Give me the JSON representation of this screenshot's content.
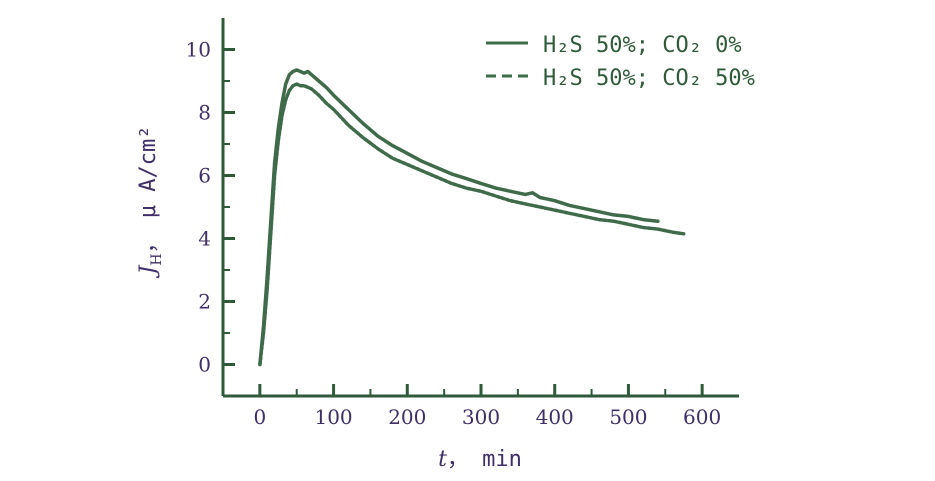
{
  "colors": {
    "axis": "#2f5a3a",
    "label_text": "#3f2f66",
    "series_line": "#3f6b4a",
    "legend_text": "#2f5a3a",
    "background": "#ffffff"
  },
  "chart_data": {
    "type": "line",
    "title": "",
    "xlabel_var": "t",
    "xlabel_unit": "， min",
    "ylabel_var": "J",
    "ylabel_sub": "H",
    "ylabel_unit": "， μ A/cm²",
    "xlim": [
      -50,
      650
    ],
    "ylim": [
      -1,
      11
    ],
    "x_ticks": [
      0,
      100,
      200,
      300,
      400,
      500,
      600
    ],
    "x_tick_labels": [
      "0",
      "100",
      "200",
      "300",
      "400",
      "500",
      "600"
    ],
    "y_ticks": [
      0,
      2,
      4,
      6,
      8,
      10
    ],
    "y_tick_labels": [
      "0",
      "2",
      "4",
      "6",
      "8",
      "10"
    ],
    "grid": false,
    "legend_position": "top-right",
    "series": [
      {
        "name": "H₂S 50%; CO₂ 0%",
        "style": "solid",
        "x": [
          0,
          5,
          10,
          15,
          20,
          25,
          30,
          35,
          40,
          45,
          50,
          55,
          60,
          65,
          70,
          80,
          90,
          100,
          120,
          140,
          160,
          180,
          200,
          220,
          240,
          260,
          280,
          300,
          320,
          340,
          360,
          370,
          380,
          390,
          400,
          420,
          440,
          460,
          480,
          500,
          520,
          540
        ],
        "y": [
          0,
          1.2,
          2.8,
          4.6,
          6.4,
          7.5,
          8.3,
          8.9,
          9.2,
          9.3,
          9.35,
          9.3,
          9.25,
          9.3,
          9.2,
          9.0,
          8.8,
          8.55,
          8.1,
          7.65,
          7.25,
          6.95,
          6.7,
          6.45,
          6.25,
          6.05,
          5.9,
          5.75,
          5.6,
          5.5,
          5.4,
          5.45,
          5.3,
          5.25,
          5.2,
          5.05,
          4.95,
          4.85,
          4.75,
          4.7,
          4.6,
          4.55
        ]
      },
      {
        "name": "H₂S 50%; CO₂ 50%",
        "style": "dashed",
        "x": [
          0,
          5,
          10,
          15,
          20,
          25,
          30,
          35,
          40,
          45,
          50,
          55,
          60,
          70,
          80,
          90,
          100,
          120,
          140,
          160,
          180,
          200,
          220,
          240,
          260,
          280,
          300,
          320,
          340,
          360,
          380,
          400,
          420,
          440,
          460,
          480,
          500,
          520,
          540,
          560,
          575
        ],
        "y": [
          0,
          1.0,
          2.4,
          4.2,
          6.0,
          7.1,
          7.9,
          8.4,
          8.7,
          8.85,
          8.9,
          8.85,
          8.85,
          8.75,
          8.55,
          8.3,
          8.1,
          7.6,
          7.2,
          6.85,
          6.55,
          6.35,
          6.15,
          5.95,
          5.75,
          5.6,
          5.5,
          5.35,
          5.2,
          5.1,
          5.0,
          4.9,
          4.8,
          4.7,
          4.6,
          4.55,
          4.45,
          4.35,
          4.3,
          4.2,
          4.15
        ]
      }
    ]
  }
}
